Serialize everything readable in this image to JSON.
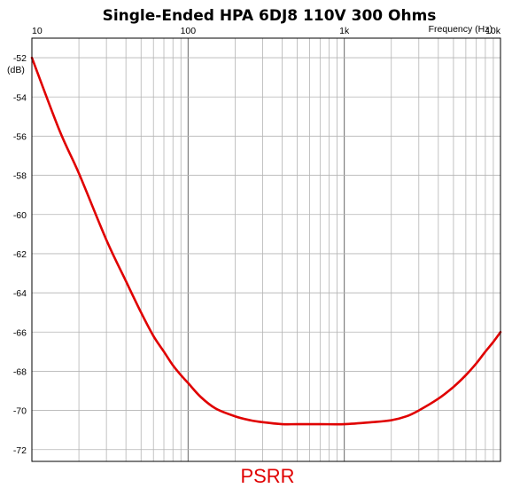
{
  "chart_data": {
    "type": "line",
    "title": "Single-Ended HPA 6DJ8 110V 300 Ohms",
    "xlabel": "Frequency   (Hz)",
    "ylabel": "(dB)",
    "caption": "PSRR",
    "x_scale": "log",
    "xlim": [
      10,
      10000
    ],
    "ylim": [
      -72.6,
      -51
    ],
    "x_tick_values": [
      10,
      100,
      1000,
      10000
    ],
    "x_tick_labels": [
      "10",
      "100",
      "1k",
      "10k"
    ],
    "y_ticks": [
      -52,
      -54,
      -56,
      -58,
      -60,
      -62,
      -64,
      -66,
      -68,
      -70,
      -72
    ],
    "grid": true,
    "series": [
      {
        "color": "#e00000",
        "x": [
          10,
          15,
          20,
          30,
          40,
          50,
          60,
          70,
          80,
          90,
          100,
          120,
          150,
          200,
          250,
          300,
          400,
          500,
          700,
          1000,
          1500,
          2000,
          2500,
          3000,
          4000,
          5000,
          6000,
          7000,
          8000,
          9000,
          10000
        ],
        "y": [
          -52.0,
          -55.7,
          -57.9,
          -61.3,
          -63.4,
          -65.0,
          -66.2,
          -67.0,
          -67.7,
          -68.2,
          -68.6,
          -69.3,
          -69.9,
          -70.3,
          -70.5,
          -70.6,
          -70.7,
          -70.7,
          -70.7,
          -70.7,
          -70.6,
          -70.5,
          -70.3,
          -70.0,
          -69.4,
          -68.8,
          -68.2,
          -67.6,
          -67.0,
          -66.5,
          -66.0
        ]
      }
    ]
  }
}
